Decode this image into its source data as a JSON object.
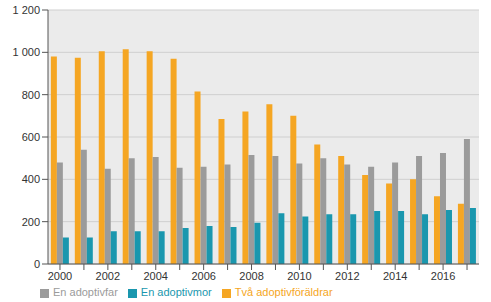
{
  "chart_data": {
    "type": "bar",
    "categories": [
      "2000",
      null,
      "2002",
      null,
      "2004",
      null,
      "2006",
      null,
      "2008",
      null,
      "2010",
      null,
      "2012",
      null,
      "2014",
      null,
      "2016",
      null
    ],
    "series": [
      {
        "name": "Två adoptivföräldrar",
        "color": "#f5a623",
        "values": [
          980,
          975,
          1005,
          1015,
          1005,
          970,
          815,
          685,
          720,
          755,
          700,
          565,
          510,
          420,
          380,
          400,
          320,
          285
        ]
      },
      {
        "name": "En adoptivfar",
        "color": "#9b9b9b",
        "values": [
          480,
          540,
          450,
          500,
          505,
          455,
          460,
          470,
          515,
          510,
          475,
          500,
          470,
          460,
          480,
          510,
          525,
          590
        ]
      },
      {
        "name": "En adoptivmor",
        "color": "#1a97ae",
        "values": [
          125,
          125,
          155,
          155,
          155,
          170,
          180,
          175,
          195,
          240,
          225,
          235,
          235,
          250,
          250,
          235,
          255,
          265
        ]
      }
    ],
    "ylim": [
      0,
      1200
    ],
    "yticks": [
      0,
      200,
      400,
      600,
      800,
      {
        "value": 1000,
        "label": "1 000"
      },
      {
        "value": 1200,
        "label": "1 200"
      }
    ],
    "grid": true,
    "legend": "bottom"
  }
}
